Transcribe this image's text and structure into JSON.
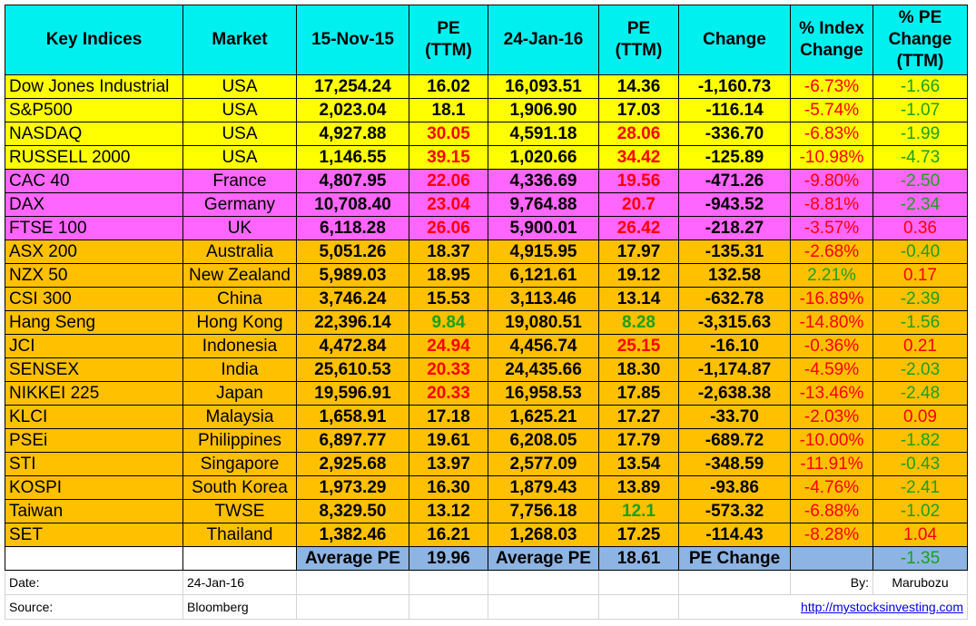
{
  "headers": [
    "Key Indices",
    "Market",
    "15-Nov-15",
    "PE (TTM)",
    "24-Jan-16",
    "PE (TTM)",
    "Change",
    "% Index Change",
    "% PE Change (TTM)"
  ],
  "colors": {
    "yellow": "#ffff00",
    "magenta": "#ff66ff",
    "orange": "#ffc000",
    "header": "#00f0f0",
    "blue": "#8db4e2",
    "red": "#ff0000",
    "green": "#1ca01c"
  },
  "rows": [
    {
      "index": "Dow Jones Industrial",
      "market": "USA",
      "v1": "17,254.24",
      "pe1": "16.02",
      "v2": "16,093.51",
      "pe2": "14.36",
      "change": "-1,160.73",
      "pct": "-6.73%",
      "pechg": "-1.66",
      "group": "yellow",
      "pe1c": "blk",
      "pe2c": "blk",
      "pctc": "red",
      "pechgc": "green"
    },
    {
      "index": "S&P500",
      "market": "USA",
      "v1": "2,023.04",
      "pe1": "18.1",
      "v2": "1,906.90",
      "pe2": "17.03",
      "change": "-116.14",
      "pct": "-5.74%",
      "pechg": "-1.07",
      "group": "yellow",
      "pe1c": "blk",
      "pe2c": "blk",
      "pctc": "red",
      "pechgc": "green"
    },
    {
      "index": "NASDAQ",
      "market": "USA",
      "v1": "4,927.88",
      "pe1": "30.05",
      "v2": "4,591.18",
      "pe2": "28.06",
      "change": "-336.70",
      "pct": "-6.83%",
      "pechg": "-1.99",
      "group": "yellow",
      "pe1c": "red",
      "pe2c": "red",
      "pctc": "red",
      "pechgc": "green"
    },
    {
      "index": "RUSSELL 2000",
      "market": "USA",
      "v1": "1,146.55",
      "pe1": "39.15",
      "v2": "1,020.66",
      "pe2": "34.42",
      "change": "-125.89",
      "pct": "-10.98%",
      "pechg": "-4.73",
      "group": "yellow",
      "pe1c": "red",
      "pe2c": "red",
      "pctc": "red",
      "pechgc": "green"
    },
    {
      "index": "CAC 40",
      "market": "France",
      "v1": "4,807.95",
      "pe1": "22.06",
      "v2": "4,336.69",
      "pe2": "19.56",
      "change": "-471.26",
      "pct": "-9.80%",
      "pechg": "-2.50",
      "group": "magenta",
      "pe1c": "red",
      "pe2c": "red",
      "pctc": "red",
      "pechgc": "green"
    },
    {
      "index": "DAX",
      "market": "Germany",
      "v1": "10,708.40",
      "pe1": "23.04",
      "v2": "9,764.88",
      "pe2": "20.7",
      "change": "-943.52",
      "pct": "-8.81%",
      "pechg": "-2.34",
      "group": "magenta",
      "pe1c": "red",
      "pe2c": "red",
      "pctc": "red",
      "pechgc": "green"
    },
    {
      "index": "FTSE 100",
      "market": "UK",
      "v1": "6,118.28",
      "pe1": "26.06",
      "v2": "5,900.01",
      "pe2": "26.42",
      "change": "-218.27",
      "pct": "-3.57%",
      "pechg": "0.36",
      "group": "magenta",
      "pe1c": "red",
      "pe2c": "red",
      "pctc": "red",
      "pechgc": "red"
    },
    {
      "index": "ASX 200",
      "market": "Australia",
      "v1": "5,051.26",
      "pe1": "18.37",
      "v2": "4,915.95",
      "pe2": "17.97",
      "change": "-135.31",
      "pct": "-2.68%",
      "pechg": "-0.40",
      "group": "orange",
      "pe1c": "blk",
      "pe2c": "blk",
      "pctc": "red",
      "pechgc": "green"
    },
    {
      "index": "NZX 50",
      "market": "New Zealand",
      "v1": "5,989.03",
      "pe1": "18.95",
      "v2": "6,121.61",
      "pe2": "19.12",
      "change": "132.58",
      "pct": "2.21%",
      "pechg": "0.17",
      "group": "orange",
      "pe1c": "blk",
      "pe2c": "blk",
      "pctc": "green",
      "pechgc": "red"
    },
    {
      "index": "CSI 300",
      "market": "China",
      "v1": "3,746.24",
      "pe1": "15.53",
      "v2": "3,113.46",
      "pe2": "13.14",
      "change": "-632.78",
      "pct": "-16.89%",
      "pechg": "-2.39",
      "group": "orange",
      "pe1c": "blk",
      "pe2c": "blk",
      "pctc": "red",
      "pechgc": "green"
    },
    {
      "index": "Hang Seng",
      "market": "Hong Kong",
      "v1": "22,396.14",
      "pe1": "9.84",
      "v2": "19,080.51",
      "pe2": "8.28",
      "change": "-3,315.63",
      "pct": "-14.80%",
      "pechg": "-1.56",
      "group": "orange",
      "pe1c": "green",
      "pe2c": "green",
      "pctc": "red",
      "pechgc": "green"
    },
    {
      "index": "JCI",
      "market": "Indonesia",
      "v1": "4,472.84",
      "pe1": "24.94",
      "v2": "4,456.74",
      "pe2": "25.15",
      "change": "-16.10",
      "pct": "-0.36%",
      "pechg": "0.21",
      "group": "orange",
      "pe1c": "red",
      "pe2c": "red",
      "pctc": "red",
      "pechgc": "red"
    },
    {
      "index": "SENSEX",
      "market": "India",
      "v1": "25,610.53",
      "pe1": "20.33",
      "v2": "24,435.66",
      "pe2": "18.30",
      "change": "-1,174.87",
      "pct": "-4.59%",
      "pechg": "-2.03",
      "group": "orange",
      "pe1c": "red",
      "pe2c": "blk",
      "pctc": "red",
      "pechgc": "green"
    },
    {
      "index": "NIKKEI 225",
      "market": "Japan",
      "v1": "19,596.91",
      "pe1": "20.33",
      "v2": "16,958.53",
      "pe2": "17.85",
      "change": "-2,638.38",
      "pct": "-13.46%",
      "pechg": "-2.48",
      "group": "orange",
      "pe1c": "red",
      "pe2c": "blk",
      "pctc": "red",
      "pechgc": "green"
    },
    {
      "index": "KLCI",
      "market": "Malaysia",
      "v1": "1,658.91",
      "pe1": "17.18",
      "v2": "1,625.21",
      "pe2": "17.27",
      "change": "-33.70",
      "pct": "-2.03%",
      "pechg": "0.09",
      "group": "orange",
      "pe1c": "blk",
      "pe2c": "blk",
      "pctc": "red",
      "pechgc": "red"
    },
    {
      "index": "PSEi",
      "market": "Philippines",
      "v1": "6,897.77",
      "pe1": "19.61",
      "v2": "6,208.05",
      "pe2": "17.79",
      "change": "-689.72",
      "pct": "-10.00%",
      "pechg": "-1.82",
      "group": "orange",
      "pe1c": "blk",
      "pe2c": "blk",
      "pctc": "red",
      "pechgc": "green"
    },
    {
      "index": "STI",
      "market": "Singapore",
      "v1": "2,925.68",
      "pe1": "13.97",
      "v2": "2,577.09",
      "pe2": "13.54",
      "change": "-348.59",
      "pct": "-11.91%",
      "pechg": "-0.43",
      "group": "orange",
      "pe1c": "blk",
      "pe2c": "blk",
      "pctc": "red",
      "pechgc": "green"
    },
    {
      "index": "KOSPI",
      "market": "South Korea",
      "v1": "1,973.29",
      "pe1": "16.30",
      "v2": "1,879.43",
      "pe2": "13.89",
      "change": "-93.86",
      "pct": "-4.76%",
      "pechg": "-2.41",
      "group": "orange",
      "pe1c": "blk",
      "pe2c": "blk",
      "pctc": "red",
      "pechgc": "green"
    },
    {
      "index": "Taiwan",
      "market": "TWSE",
      "v1": "8,329.50",
      "pe1": "13.12",
      "v2": "7,756.18",
      "pe2": "12.1",
      "change": "-573.32",
      "pct": "-6.88%",
      "pechg": "-1.02",
      "group": "orange",
      "pe1c": "blk",
      "pe2c": "green",
      "pctc": "red",
      "pechgc": "green"
    },
    {
      "index": "SET",
      "market": "Thailand",
      "v1": "1,382.46",
      "pe1": "16.21",
      "v2": "1,268.03",
      "pe2": "17.25",
      "change": "-114.43",
      "pct": "-8.28%",
      "pechg": "1.04",
      "group": "orange",
      "pe1c": "blk",
      "pe2c": "blk",
      "pctc": "red",
      "pechgc": "red"
    }
  ],
  "average": {
    "label1": "Average PE",
    "value1": "19.96",
    "label2": "Average PE",
    "value2": "18.61",
    "label3": "PE Change",
    "value3": "-1.35"
  },
  "footer": {
    "date_label": "Date:",
    "date_value": "24-Jan-16",
    "by_label": "By:",
    "by_value": "Marubozu",
    "source_label": "Source:",
    "source_value": "Bloomberg",
    "link": "http://mystocksinvesting.com"
  }
}
